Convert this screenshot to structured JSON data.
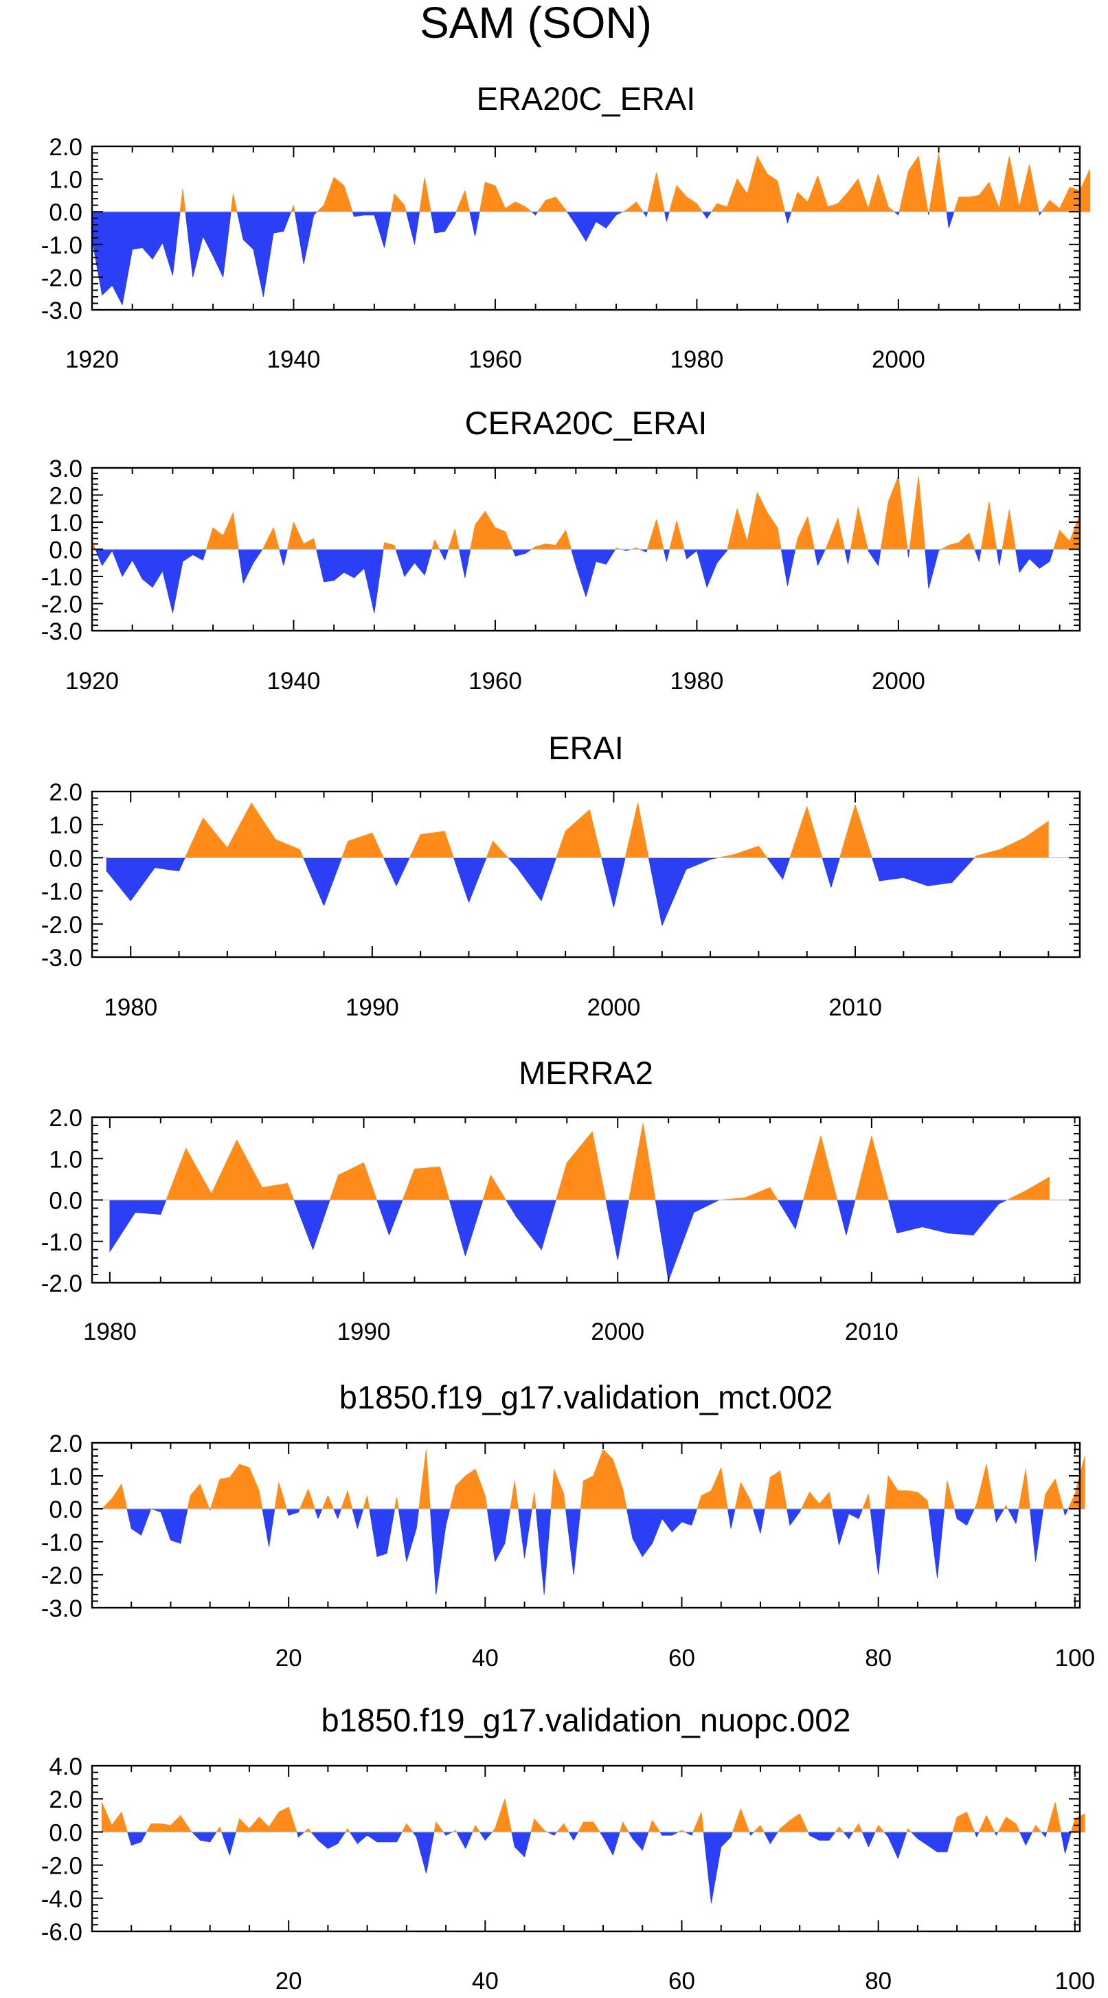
{
  "page_title": "SAM (SON)",
  "colors": {
    "positive": "#ff8c1a",
    "negative": "#2b3ff5",
    "axis": "#000000"
  },
  "chart_data": [
    {
      "type": "area",
      "title": "ERA20C_ERAI",
      "xlim": [
        1920,
        2018
      ],
      "ylim": [
        -3.0,
        2.0
      ],
      "ytick_values": [
        2.0,
        1.0,
        0.0,
        -1.0,
        -2.0,
        -3.0
      ],
      "ytick_labels": [
        "2.0",
        "1.0",
        "0.0",
        "-1.0",
        "-2.0",
        "-3.0"
      ],
      "xtick_values": [
        1920,
        1940,
        1960,
        1980,
        2000
      ],
      "xtick_labels": [
        "1920",
        "1940",
        "1960",
        "1980",
        "2000"
      ],
      "x_start": 1920,
      "values": [
        -0.85,
        -2.55,
        -2.25,
        -2.85,
        -1.15,
        -1.1,
        -1.45,
        -0.95,
        -1.95,
        0.7,
        -2.0,
        -0.75,
        -1.35,
        -2.0,
        0.55,
        -0.85,
        -1.15,
        -2.6,
        -0.65,
        -0.6,
        0.2,
        -1.6,
        -0.1,
        0.2,
        1.05,
        0.8,
        -0.15,
        -0.1,
        -0.1,
        -1.1,
        0.55,
        0.2,
        -1.0,
        1.05,
        -0.65,
        -0.6,
        -0.1,
        0.65,
        -0.75,
        0.9,
        0.8,
        0.1,
        0.3,
        0.15,
        -0.1,
        0.35,
        0.45,
        0.05,
        -0.4,
        -0.9,
        -0.3,
        -0.5,
        -0.1,
        0.05,
        0.3,
        -0.15,
        1.2,
        -0.3,
        0.8,
        0.45,
        0.25,
        -0.2,
        0.25,
        0.15,
        1.0,
        0.55,
        1.7,
        1.15,
        0.95,
        -0.35,
        0.6,
        0.3,
        1.1,
        0.15,
        0.25,
        0.6,
        1.0,
        0.1,
        1.15,
        0.15,
        -0.1,
        1.25,
        1.7,
        -0.1,
        1.8,
        -0.5,
        0.45,
        0.45,
        0.5,
        0.9,
        0.1,
        1.7,
        0.15,
        1.45,
        -0.1,
        0.35,
        0.1,
        0.75,
        0.65,
        1.3
      ]
    },
    {
      "type": "area",
      "title": "CERA20C_ERAI",
      "xlim": [
        1920,
        2018
      ],
      "ylim": [
        -3.0,
        3.0
      ],
      "ytick_values": [
        3.0,
        2.0,
        1.0,
        0.0,
        -1.0,
        -2.0,
        -3.0
      ],
      "ytick_labels": [
        "3.0",
        "2.0",
        "1.0",
        "0.0",
        "-1.0",
        "-2.0",
        "-3.0"
      ],
      "xtick_values": [
        1920,
        1940,
        1960,
        1980,
        2000
      ],
      "xtick_labels": [
        "1920",
        "1940",
        "1960",
        "1980",
        "2000"
      ],
      "x_start": 1920,
      "values": [
        0.3,
        -0.6,
        -0.05,
        -1.0,
        -0.4,
        -1.1,
        -1.4,
        -0.8,
        -2.35,
        -0.45,
        -0.2,
        -0.4,
        0.8,
        0.5,
        1.35,
        -1.25,
        -0.5,
        0.05,
        0.8,
        -0.6,
        1.0,
        0.2,
        0.4,
        -1.2,
        -1.15,
        -0.85,
        -1.05,
        -0.7,
        -2.35,
        0.25,
        0.15,
        -1.0,
        -0.5,
        -0.95,
        0.35,
        -0.4,
        0.75,
        -1.05,
        0.9,
        1.4,
        0.8,
        0.65,
        -0.25,
        -0.15,
        0.1,
        0.2,
        0.15,
        0.7,
        -0.6,
        -1.75,
        -0.45,
        -0.55,
        0.05,
        -0.05,
        0.05,
        -0.1,
        1.1,
        -0.45,
        1.05,
        -0.35,
        -0.05,
        -1.4,
        -0.5,
        -0.05,
        1.5,
        0.3,
        2.1,
        1.35,
        0.8,
        -1.35,
        0.4,
        1.2,
        -0.6,
        0.2,
        1.15,
        -0.55,
        1.55,
        -0.05,
        -0.6,
        1.75,
        2.7,
        -0.3,
        2.7,
        -1.45,
        -0.05,
        0.15,
        0.25,
        0.6,
        -0.45,
        1.75,
        -0.6,
        1.45,
        -0.85,
        -0.35,
        -0.7,
        -0.45,
        0.7,
        0.3,
        1.3
      ]
    },
    {
      "type": "area",
      "title": "ERAI",
      "xlim": [
        1978.4,
        2019.3
      ],
      "ylim": [
        -3.0,
        2.0
      ],
      "ytick_values": [
        2.0,
        1.0,
        0.0,
        -1.0,
        -2.0,
        -3.0
      ],
      "ytick_labels": [
        "2.0",
        "1.0",
        "0.0",
        "-1.0",
        "-2.0",
        "-3.0"
      ],
      "xtick_values": [
        1980,
        1990,
        2000,
        2010
      ],
      "xtick_labels": [
        "1980",
        "1990",
        "2000",
        "2010"
      ],
      "x_start": 1979,
      "values": [
        -0.4,
        -1.3,
        -0.3,
        -0.4,
        1.2,
        0.3,
        1.65,
        0.55,
        0.25,
        -1.45,
        0.5,
        0.75,
        -0.85,
        0.7,
        0.8,
        -1.35,
        0.5,
        -0.3,
        -1.3,
        0.8,
        1.45,
        -1.5,
        1.65,
        -2.05,
        -0.35,
        -0.05,
        0.1,
        0.35,
        -0.65,
        1.55,
        -0.9,
        1.6,
        -0.7,
        -0.6,
        -0.85,
        -0.75,
        0.05,
        0.25,
        0.6,
        1.1
      ]
    },
    {
      "type": "area",
      "title": "MERRA2",
      "xlim": [
        1979.3,
        2018.2
      ],
      "ylim": [
        -2.0,
        2.0
      ],
      "ytick_values": [
        2.0,
        1.0,
        0.0,
        -1.0,
        -2.0
      ],
      "ytick_labels": [
        "2.0",
        "1.0",
        "0.0",
        "-1.0",
        "-2.0"
      ],
      "xtick_values": [
        1980,
        1990,
        2000,
        2010
      ],
      "xtick_labels": [
        "1980",
        "1990",
        "2000",
        "2010"
      ],
      "x_start": 1980,
      "values": [
        -1.25,
        -0.3,
        -0.35,
        1.25,
        0.15,
        1.45,
        0.3,
        0.4,
        -1.2,
        0.6,
        0.9,
        -0.85,
        0.75,
        0.8,
        -1.35,
        0.6,
        -0.4,
        -1.2,
        0.9,
        1.65,
        -1.45,
        1.85,
        -1.95,
        -0.3,
        0.0,
        0.05,
        0.3,
        -0.7,
        1.55,
        -0.85,
        1.55,
        -0.8,
        -0.65,
        -0.8,
        -0.85,
        -0.1,
        0.2,
        0.55
      ]
    },
    {
      "type": "area",
      "title": "b1850.f19_g17.validation_mct.002",
      "xlim": [
        0,
        100.5
      ],
      "ylim": [
        -3.0,
        2.0
      ],
      "ytick_values": [
        2.0,
        1.0,
        0.0,
        -1.0,
        -2.0,
        -3.0
      ],
      "ytick_labels": [
        "2.0",
        "1.0",
        "0.0",
        "-1.0",
        "-2.0",
        "-3.0"
      ],
      "xtick_values": [
        20,
        40,
        60,
        80,
        100
      ],
      "xtick_labels": [
        "20",
        "40",
        "60",
        "80",
        "100"
      ],
      "x_start": 1,
      "values": [
        0.0,
        0.3,
        0.75,
        -0.6,
        -0.8,
        0.0,
        -0.1,
        -0.95,
        -1.05,
        0.4,
        0.75,
        -0.05,
        0.9,
        0.95,
        1.35,
        1.25,
        0.55,
        -1.15,
        0.8,
        -0.2,
        -0.1,
        0.6,
        -0.3,
        0.4,
        -0.3,
        0.55,
        -0.6,
        0.4,
        -1.45,
        -1.35,
        0.35,
        -1.6,
        -0.6,
        1.8,
        -2.6,
        -0.5,
        0.7,
        1.0,
        1.2,
        0.4,
        -1.6,
        -1.05,
        0.85,
        -1.5,
        0.5,
        -2.6,
        1.2,
        0.45,
        -2.0,
        0.85,
        1.0,
        1.8,
        1.5,
        0.6,
        -0.9,
        -1.45,
        -1.05,
        -0.3,
        -0.7,
        -0.4,
        -0.5,
        0.4,
        0.55,
        1.25,
        -0.6,
        0.8,
        0.25,
        -0.75,
        0.95,
        1.15,
        -0.5,
        -0.1,
        0.5,
        0.15,
        0.5,
        -1.1,
        -0.15,
        -0.3,
        0.45,
        -2.0,
        1.0,
        0.55,
        0.55,
        0.5,
        0.25,
        -2.1,
        0.85,
        -0.3,
        -0.5,
        0.15,
        1.35,
        -0.4,
        0.1,
        -0.45,
        1.2,
        -1.6,
        0.45,
        0.9,
        -0.2,
        0.45,
        1.6
      ]
    },
    {
      "type": "area",
      "title": "b1850.f19_g17.validation_nuopc.002",
      "xlim": [
        0,
        100.5
      ],
      "ylim": [
        -6.0,
        4.0
      ],
      "ytick_values": [
        4.0,
        2.0,
        0.0,
        -2.0,
        -4.0,
        -6.0
      ],
      "ytick_labels": [
        "4.0",
        "2.0",
        "0.0",
        "-2.0",
        "-4.0",
        "-6.0"
      ],
      "xtick_values": [
        20,
        40,
        60,
        80,
        100
      ],
      "xtick_labels": [
        "20",
        "40",
        "60",
        "80",
        "100"
      ],
      "x_start": 1,
      "values": [
        1.8,
        0.4,
        1.2,
        -0.8,
        -0.6,
        0.5,
        0.5,
        0.4,
        1.0,
        0.1,
        -0.5,
        -0.6,
        0.3,
        -1.4,
        0.8,
        0.2,
        0.9,
        0.3,
        1.2,
        1.5,
        -0.3,
        0.2,
        -0.5,
        -1.0,
        -0.7,
        0.2,
        -0.7,
        -0.2,
        -0.6,
        -0.6,
        -0.6,
        0.5,
        -0.3,
        -2.5,
        0.6,
        -0.2,
        0.1,
        -1.0,
        0.4,
        -0.5,
        0.2,
        2.0,
        -0.9,
        -1.5,
        0.8,
        0.1,
        -0.2,
        0.5,
        -0.5,
        0.6,
        0.6,
        -0.3,
        -1.4,
        0.6,
        -0.4,
        -1.1,
        0.7,
        -0.2,
        -0.2,
        0.1,
        -0.2,
        1.2,
        -4.3,
        -0.9,
        -0.3,
        1.4,
        -0.2,
        0.4,
        -0.7,
        0.2,
        0.7,
        1.1,
        -0.2,
        -0.5,
        -0.5,
        0.3,
        -0.4,
        0.5,
        -0.9,
        0.4,
        -0.3,
        -1.6,
        0.2,
        -0.4,
        -0.8,
        -1.2,
        -1.2,
        0.9,
        1.2,
        -0.3,
        1.0,
        -0.2,
        0.9,
        0.5,
        -0.8,
        0.4,
        -0.3,
        1.8,
        -1.3,
        0.8,
        1.1
      ]
    }
  ]
}
